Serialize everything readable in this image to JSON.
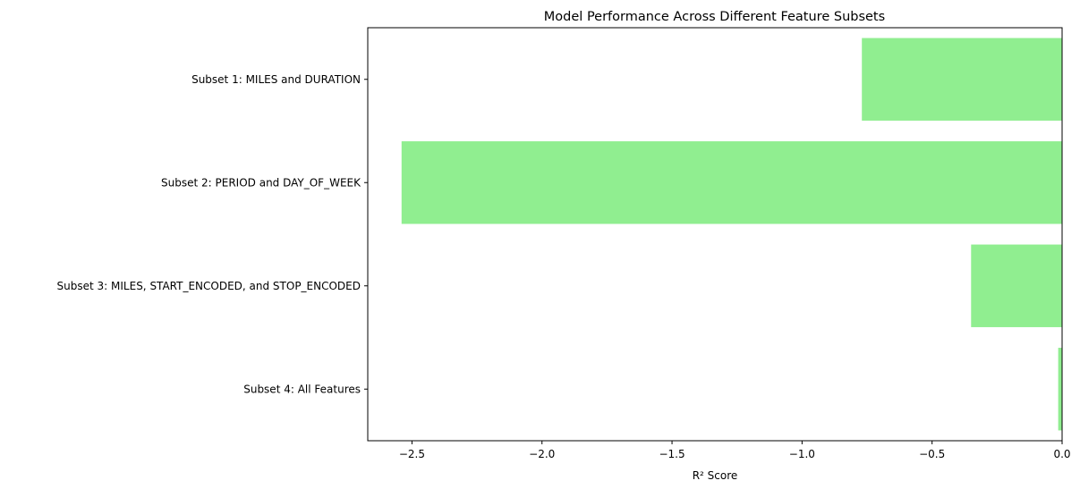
{
  "chart_data": {
    "type": "bar",
    "orientation": "horizontal",
    "title": "Model Performance Across Different Feature Subsets",
    "xlabel": "R² Score",
    "ylabel": "",
    "categories": [
      "Subset 1: MILES and DURATION",
      "Subset 2: PERIOD and DAY_OF_WEEK",
      "Subset 3: MILES, START_ENCODED, and STOP_ENCODED",
      "Subset 4: All Features"
    ],
    "values": [
      -0.77,
      -2.54,
      -0.35,
      -0.015
    ],
    "xlim": [
      -2.67,
      0.0
    ],
    "xticks": [
      -2.5,
      -2.0,
      -1.5,
      -1.0,
      -0.5,
      0.0
    ],
    "xtick_labels": [
      "−2.5",
      "−2.0",
      "−1.5",
      "−1.0",
      "−0.5",
      "0.0"
    ],
    "bar_color": "#90ee90",
    "grid": false,
    "legend": "none"
  }
}
